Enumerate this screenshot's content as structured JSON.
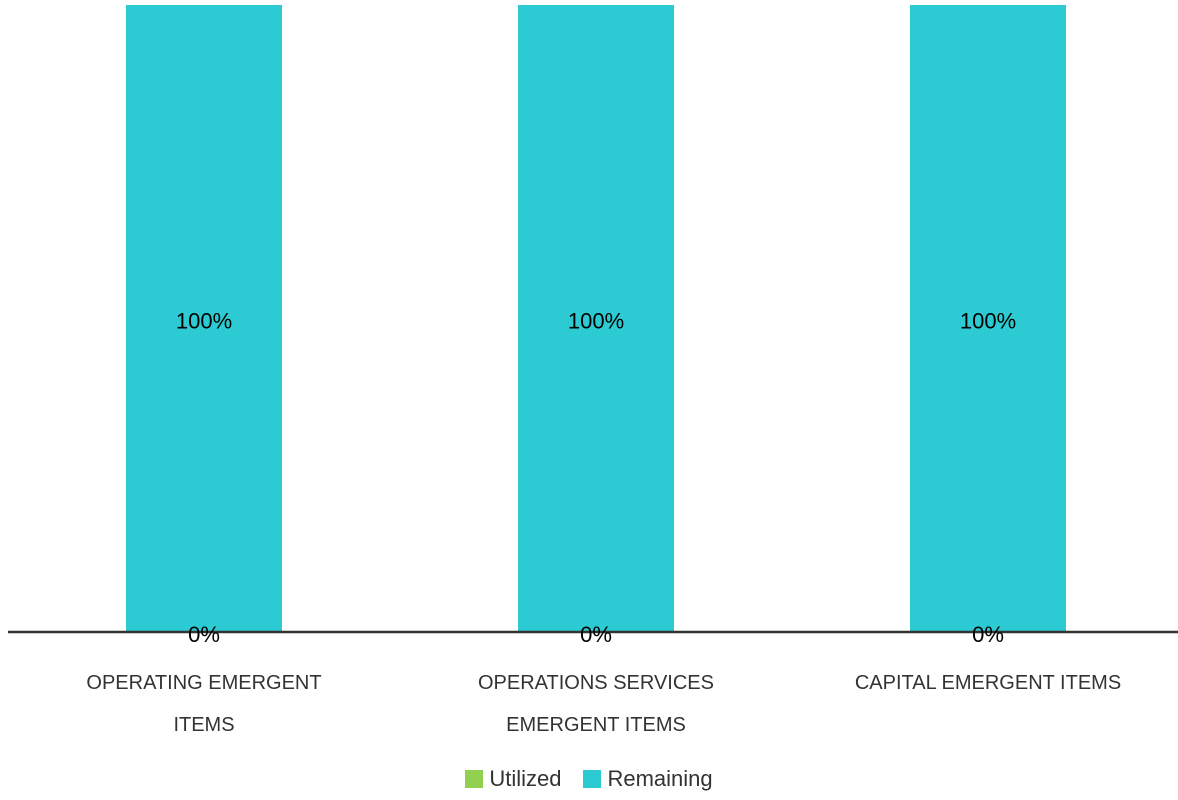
{
  "chart_data": {
    "type": "stacked_bar",
    "categories": [
      "OPERATING EMERGENT ITEMS",
      "OPERATIONS SERVICES EMERGENT ITEMS",
      "CAPITAL EMERGENT ITEMS"
    ],
    "series": [
      {
        "name": "Utilized",
        "color": "#92d050",
        "values": [
          0,
          0,
          0
        ],
        "value_labels": [
          "0%",
          "0%",
          "0%"
        ]
      },
      {
        "name": "Remaining",
        "color": "#2ccbd3",
        "values": [
          100,
          100,
          100
        ],
        "value_labels": [
          "100%",
          "100%",
          "100%"
        ]
      }
    ],
    "legend": "bottom"
  }
}
